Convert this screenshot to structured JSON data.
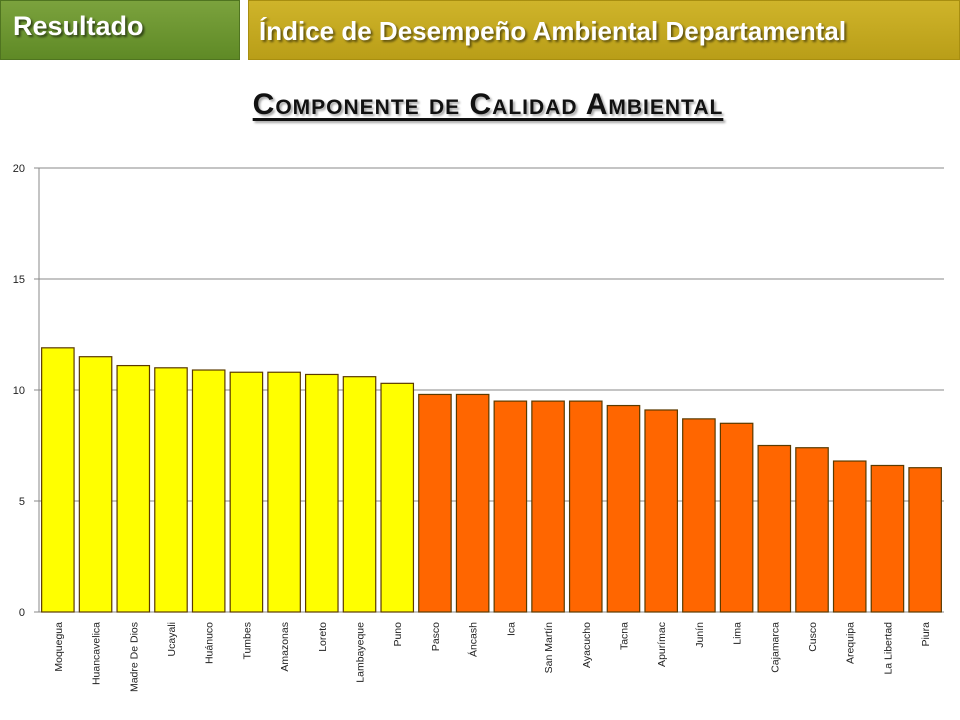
{
  "header": {
    "tab_label": "Resultado",
    "section_title": "Índice de Desempeño Ambiental Departamental"
  },
  "colors": {
    "bar_high": "#ffff00",
    "bar_low": "#ff6600",
    "bar_stroke": "#5a3a00",
    "grid": "#888888"
  },
  "chart_data": {
    "type": "bar",
    "title": "Componente de Calidad Ambiental",
    "xlabel": "",
    "ylabel": "",
    "ylim": [
      0,
      20
    ],
    "yticks": [
      0,
      5,
      10,
      15,
      20
    ],
    "grid": true,
    "categories": [
      "Moquegua",
      "Huancavelica",
      "Madre De Dios",
      "Ucayali",
      "Huánuco",
      "Tumbes",
      "Amazonas",
      "Loreto",
      "Lambayeque",
      "Puno",
      "Pasco",
      "Áncash",
      "Ica",
      "San Martín",
      "Ayacucho",
      "Tacna",
      "Apurímac",
      "Junín",
      "Lima",
      "Cajamarca",
      "Cusco",
      "Arequipa",
      "La Libertad",
      "Piura"
    ],
    "values": [
      11.9,
      11.5,
      11.1,
      11.0,
      10.9,
      10.8,
      10.8,
      10.7,
      10.6,
      10.3,
      9.8,
      9.8,
      9.5,
      9.5,
      9.5,
      9.3,
      9.1,
      8.7,
      8.5,
      7.5,
      7.4,
      6.8,
      6.6,
      6.5
    ],
    "highlight_count": 10
  }
}
